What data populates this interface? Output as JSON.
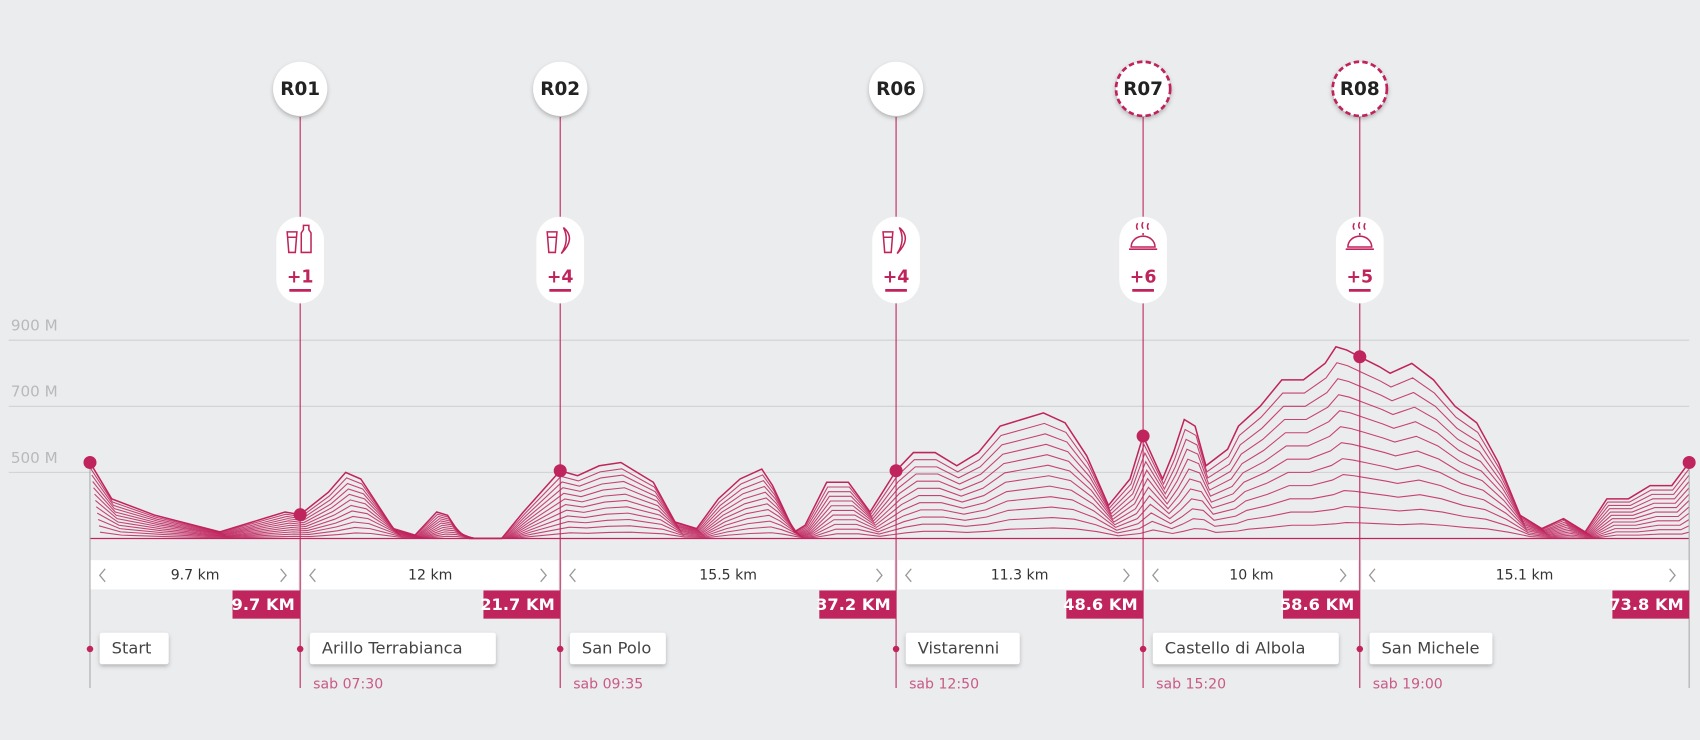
{
  "ylim": [
    300,
    900
  ],
  "xlim": [
    0,
    73.8
  ],
  "yticks": [
    {
      "value": 900,
      "label": "900 M"
    },
    {
      "value": 700,
      "label": "700 M"
    },
    {
      "value": 500,
      "label": "500 M"
    }
  ],
  "profile": {
    "km": [
      0,
      1,
      3,
      6,
      8,
      9,
      9.7,
      11,
      11.8,
      12.5,
      14,
      15,
      16,
      16.5,
      17,
      17.5,
      19,
      20,
      21.7,
      22.5,
      23.5,
      24.5,
      26,
      27,
      28,
      29,
      30,
      31,
      31.5,
      32.5,
      33,
      34,
      35,
      36,
      37.2,
      38,
      39,
      40,
      41,
      42,
      43,
      44,
      45,
      46,
      47,
      48,
      48.6,
      49.5,
      50,
      50.5,
      51,
      51.5,
      52.5,
      53,
      54,
      55,
      56,
      57,
      57.5,
      58,
      58.6,
      59.5,
      60,
      61,
      62,
      63,
      64,
      65,
      66,
      67,
      68,
      69,
      70,
      71,
      72,
      73,
      73.8
    ],
    "elevation": [
      530,
      420,
      370,
      320,
      360,
      380,
      372,
      440,
      500,
      480,
      330,
      310,
      380,
      370,
      320,
      300,
      300,
      380,
      505,
      490,
      520,
      530,
      470,
      350,
      330,
      420,
      480,
      510,
      460,
      320,
      340,
      470,
      470,
      380,
      505,
      560,
      560,
      520,
      560,
      640,
      660,
      680,
      650,
      550,
      400,
      480,
      610,
      480,
      560,
      660,
      640,
      520,
      570,
      640,
      700,
      780,
      780,
      830,
      880,
      870,
      850,
      820,
      800,
      830,
      780,
      700,
      650,
      530,
      370,
      330,
      360,
      320,
      420,
      420,
      460,
      460,
      530
    ]
  },
  "stations": [
    {
      "name": "Start",
      "km": 0
    },
    {
      "name": "Arillo Terrabianca",
      "km": 9.7,
      "km_label": "9.7 KM",
      "time": "sab 07:30",
      "code": "R01",
      "bonus": "+1",
      "icon": "drink",
      "dashed": false
    },
    {
      "name": "San Polo",
      "km": 21.7,
      "km_label": "21.7 KM",
      "time": "sab 09:35",
      "code": "R02",
      "bonus": "+4",
      "icon": "drink-banana",
      "dashed": false
    },
    {
      "name": "Vistarenni",
      "km": 37.2,
      "km_label": "37.2 KM",
      "time": "sab 12:50",
      "code": "R06",
      "bonus": "+4",
      "icon": "drink-banana",
      "dashed": false
    },
    {
      "name": "Castello di Albola",
      "km": 48.6,
      "km_label": "48.6 KM",
      "time": "sab 15:20",
      "code": "R07",
      "bonus": "+6",
      "icon": "meal",
      "dashed": true
    },
    {
      "name": "San Michele",
      "km": 58.6,
      "km_label": "58.6 KM",
      "time": "sab 19:00",
      "code": "R08",
      "bonus": "+5",
      "icon": "meal",
      "dashed": true
    },
    {
      "km": 73.8,
      "km_label": "73.8 KM"
    }
  ],
  "segments": [
    "9.7 km",
    "12 km",
    "15.5 km",
    "11.3 km",
    "10 km",
    "15.1 km"
  ]
}
